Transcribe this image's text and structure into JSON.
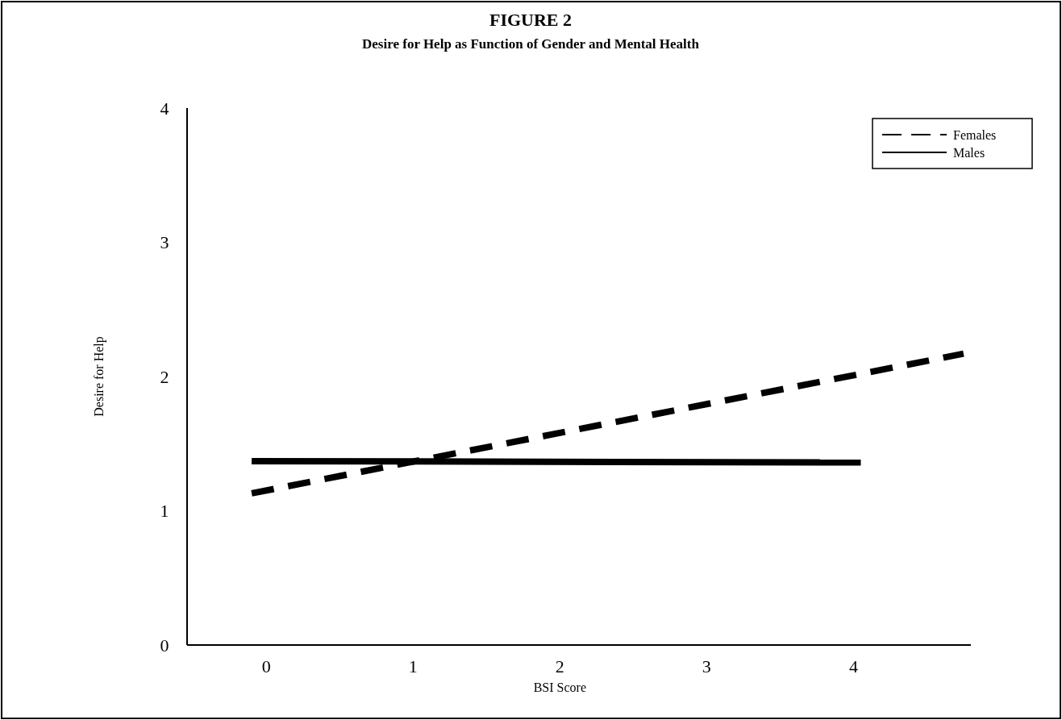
{
  "chart_data": {
    "type": "line",
    "title": "FIGURE 2",
    "subtitle": "Desire for Help as Function of Gender and Mental Health",
    "xlabel": "BSI Score",
    "ylabel": "Desire for Help",
    "xlim": [
      -0.54,
      4.8
    ],
    "xticks": [
      0,
      1,
      2,
      3,
      4
    ],
    "ylim": [
      0,
      4
    ],
    "yticks": [
      0,
      1,
      2,
      3,
      4
    ],
    "grid": false,
    "legend": "top right",
    "series": [
      {
        "name": "Females",
        "color": "#000000",
        "x": [
          -0.1,
          4.75
        ],
        "values": [
          1.13,
          2.17
        ],
        "line_style": "dashed"
      },
      {
        "name": "Males",
        "color": "#000000",
        "x": [
          -0.1,
          4.05
        ],
        "values": [
          1.37,
          1.36
        ],
        "line_style": "solid"
      }
    ]
  }
}
